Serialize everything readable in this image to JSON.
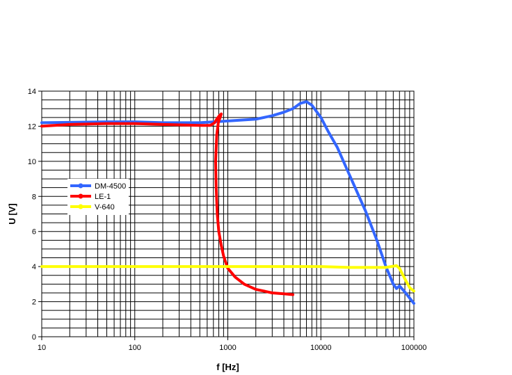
{
  "chart_data": {
    "type": "line",
    "title": "",
    "xlabel": "f [Hz]",
    "ylabel": "U [V]",
    "xscale": "log",
    "xlim": [
      10,
      100000
    ],
    "ylim": [
      0,
      14
    ],
    "grid": true,
    "legend_position": "left",
    "x_tick_labels": [
      "10",
      "100",
      "1000",
      "10000",
      "100000"
    ],
    "y_tick_labels": [
      "0",
      "2",
      "4",
      "6",
      "8",
      "10",
      "12",
      "14"
    ],
    "series": [
      {
        "name": "DM-4500",
        "color": "#3366ff",
        "points": [
          [
            10,
            12.2
          ],
          [
            20,
            12.22
          ],
          [
            50,
            12.25
          ],
          [
            100,
            12.25
          ],
          [
            200,
            12.2
          ],
          [
            500,
            12.2
          ],
          [
            1000,
            12.3
          ],
          [
            2000,
            12.4
          ],
          [
            3000,
            12.6
          ],
          [
            4000,
            12.8
          ],
          [
            5000,
            13.0
          ],
          [
            6000,
            13.3
          ],
          [
            7000,
            13.4
          ],
          [
            8000,
            13.2
          ],
          [
            10000,
            12.5
          ],
          [
            12000,
            11.7
          ],
          [
            15000,
            10.8
          ],
          [
            20000,
            9.3
          ],
          [
            30000,
            7.2
          ],
          [
            40000,
            5.5
          ],
          [
            50000,
            4.0
          ],
          [
            60000,
            3.0
          ],
          [
            65000,
            2.75
          ],
          [
            70000,
            2.9
          ],
          [
            80000,
            2.55
          ],
          [
            90000,
            2.2
          ],
          [
            100000,
            1.9
          ]
        ]
      },
      {
        "name": "LE-1",
        "color": "#ff0000",
        "points": [
          [
            10,
            12.0
          ],
          [
            20,
            12.1
          ],
          [
            50,
            12.15
          ],
          [
            100,
            12.15
          ],
          [
            200,
            12.1
          ],
          [
            500,
            12.05
          ],
          [
            650,
            12.05
          ],
          [
            720,
            12.2
          ],
          [
            760,
            12.4
          ],
          [
            810,
            12.6
          ],
          [
            850,
            12.7
          ],
          [
            790,
            12.2
          ],
          [
            760,
            11.5
          ],
          [
            740,
            10.0
          ],
          [
            750,
            8.5
          ],
          [
            770,
            7.0
          ],
          [
            800,
            6.0
          ],
          [
            850,
            5.2
          ],
          [
            900,
            4.6
          ],
          [
            1000,
            3.9
          ],
          [
            1200,
            3.4
          ],
          [
            1500,
            3.0
          ],
          [
            2000,
            2.7
          ],
          [
            3000,
            2.5
          ],
          [
            4000,
            2.45
          ],
          [
            5000,
            2.4
          ]
        ]
      },
      {
        "name": "V-640",
        "color": "#ffff00",
        "points": [
          [
            10,
            4.0
          ],
          [
            100,
            4.0
          ],
          [
            1000,
            4.0
          ],
          [
            10000,
            4.0
          ],
          [
            20000,
            3.95
          ],
          [
            50000,
            3.95
          ],
          [
            65000,
            4.05
          ],
          [
            70000,
            3.9
          ],
          [
            80000,
            3.3
          ],
          [
            90000,
            2.8
          ],
          [
            100000,
            2.6
          ]
        ]
      }
    ]
  }
}
